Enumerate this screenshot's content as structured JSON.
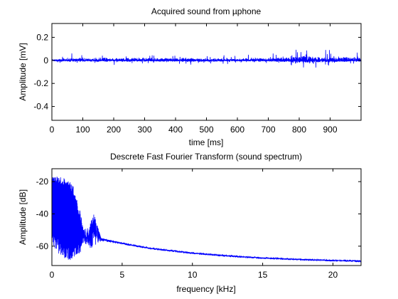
{
  "chart_data": [
    {
      "type": "line",
      "title": "Acquired sound from µphone",
      "xlabel": "time [ms]",
      "ylabel": "Amplitude [mV]",
      "xlim": [
        0,
        1000
      ],
      "ylim": [
        -0.52,
        0.32
      ],
      "xticks": [
        0,
        100,
        200,
        300,
        400,
        500,
        600,
        700,
        800,
        900
      ],
      "yticks": [
        0.2,
        0,
        -0.2,
        -0.4
      ],
      "xtick_labels": [
        "0",
        "100",
        "200",
        "300",
        "400",
        "500",
        "600",
        "700",
        "800",
        "900"
      ],
      "ytick_labels": [
        "0.2",
        "0",
        "-0.2",
        "-0.4"
      ],
      "series": [
        {
          "x": [
            0,
            25,
            50,
            100,
            200,
            300,
            400,
            500,
            600,
            650,
            700,
            750,
            780,
            790,
            800,
            820,
            840,
            860,
            880,
            900,
            950,
            1000
          ],
          "y_envelope_max": [
            0.02,
            0.05,
            0.07,
            0.07,
            0.07,
            0.07,
            0.07,
            0.06,
            0.05,
            0.06,
            0.07,
            0.08,
            0.1,
            0.12,
            0.11,
            0.15,
            0.13,
            0.1,
            0.1,
            0.1,
            0.1,
            0.1
          ],
          "y_envelope_min": [
            -0.02,
            -0.04,
            -0.04,
            -0.04,
            -0.04,
            -0.04,
            -0.04,
            -0.04,
            -0.03,
            -0.03,
            -0.04,
            -0.05,
            -0.07,
            -0.1,
            -0.08,
            -0.09,
            -0.08,
            -0.07,
            -0.06,
            -0.06,
            -0.05,
            -0.05
          ]
        }
      ],
      "color": "#0000ff",
      "grid": false,
      "legend": "none"
    },
    {
      "type": "line",
      "title": "Descrete Fast Fourier Transform (sound spectrum)",
      "xlabel": "frequency [kHz]",
      "ylabel": "Amplitude [dB]",
      "xlim": [
        0,
        22
      ],
      "ylim": [
        -72,
        -12
      ],
      "xticks": [
        0,
        5,
        10,
        15,
        20
      ],
      "yticks": [
        -20,
        -40,
        -60
      ],
      "xtick_labels": [
        "0",
        "5",
        "10",
        "15",
        "20"
      ],
      "ytick_labels": [
        "-20",
        "-40",
        "-60"
      ],
      "series": [
        {
          "x": [
            0,
            0.5,
            1.0,
            1.5,
            2.0,
            2.3,
            2.5,
            2.7,
            3.0,
            3.5,
            4,
            5,
            7,
            10,
            13,
            15,
            18,
            20,
            22
          ],
          "y_envelope_max": [
            -16,
            -17,
            -18,
            -22,
            -38,
            -48,
            -50,
            -46,
            -40,
            -55,
            -56,
            -58,
            -61,
            -64,
            -66,
            -67,
            -68,
            -68.5,
            -69
          ],
          "y_envelope_min": [
            -60,
            -65,
            -68,
            -70,
            -65,
            -58,
            -60,
            -62,
            -60,
            -57,
            -57.5,
            -59,
            -62,
            -65,
            -67,
            -68,
            -69,
            -69.5,
            -70
          ]
        }
      ],
      "color": "#0000ff",
      "grid": false,
      "legend": "none"
    }
  ]
}
